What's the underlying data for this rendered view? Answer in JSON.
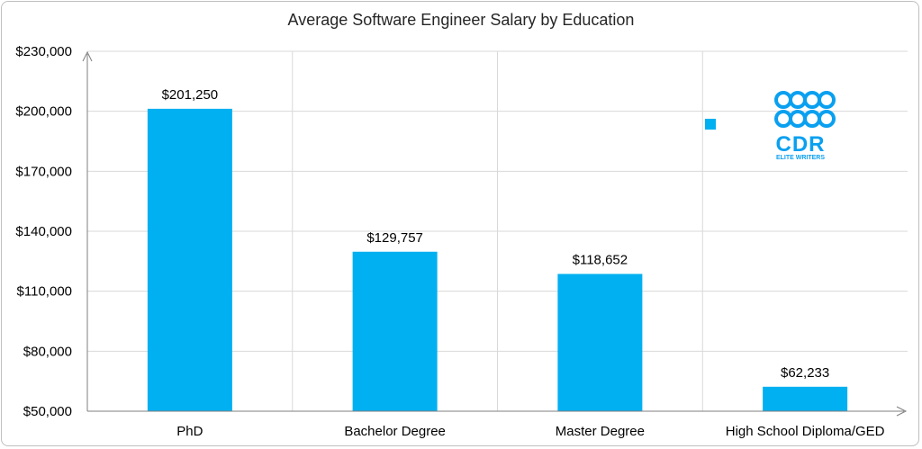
{
  "chart_data": {
    "type": "bar",
    "title": "Average Software Engineer Salary by Education",
    "xlabel": "",
    "ylabel": "",
    "categories": [
      "PhD",
      "Bachelor Degree",
      "Master Degree",
      "High School Diploma/GED"
    ],
    "values": [
      201250,
      129757,
      118652,
      62233
    ],
    "data_labels": [
      "$201,250",
      "$129,757",
      "$118,652",
      "$62,233"
    ],
    "ylim": [
      50000,
      230000
    ],
    "yticks": [
      50000,
      80000,
      110000,
      140000,
      170000,
      200000,
      230000
    ],
    "ytick_labels": [
      "$50,000",
      "$80,000",
      "$110,000",
      "$140,000",
      "$170,000",
      "$200,000",
      "$230,000"
    ],
    "grid": true,
    "bar_color": "#00b0f0"
  },
  "logo": {
    "name": "cdr-elite-writers-logo",
    "text": "CDR",
    "subtext": "ELITE WRITERS",
    "color": "#0aa0f0"
  }
}
